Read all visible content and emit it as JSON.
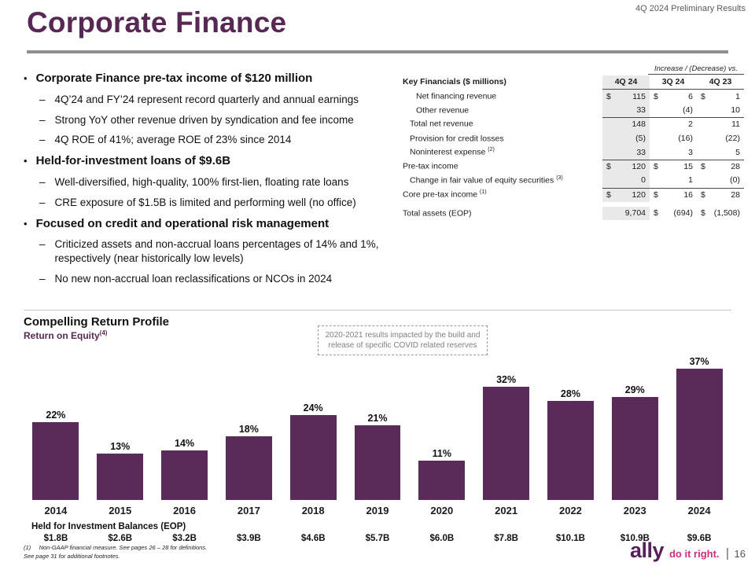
{
  "header": {
    "title": "Corporate Finance",
    "meta": "4Q 2024 Preliminary Results"
  },
  "bullets": [
    {
      "heading": "Corporate Finance pre-tax income of $120 million",
      "items": [
        "4Q’24 and FY’24 represent record quarterly and annual earnings",
        "Strong YoY other revenue driven by syndication and fee income",
        "4Q ROE of 41%; average ROE of 23% since 2014"
      ]
    },
    {
      "heading": "Held-for-investment loans of $9.6B",
      "items": [
        "Well-diversified, high-quality, 100% first-lien, floating rate loans",
        "CRE exposure of $1.5B is limited and performing well (no office)"
      ]
    },
    {
      "heading": "Focused on credit and operational risk management",
      "items": [
        "Criticized assets and non-accrual loans percentages of 14% and 1%, respectively (near historically low levels)",
        "No new non-accrual loan reclassifications or NCOs in 2024"
      ]
    }
  ],
  "table": {
    "vs_label": "Increase / (Decrease) vs.",
    "title": "Key Financials ($ millions)",
    "columns": [
      "4Q 24",
      "3Q 24",
      "4Q 23"
    ],
    "rows": [
      {
        "label": "Net financing revenue",
        "cells": [
          {
            "d": "$",
            "v": "115"
          },
          {
            "d": "$",
            "v": "6"
          },
          {
            "d": "$",
            "v": "1"
          }
        ]
      },
      {
        "label": "Other revenue",
        "cells": [
          {
            "v": "33"
          },
          {
            "v": "(4)"
          },
          {
            "v": "10"
          }
        ]
      },
      {
        "label": "Total net revenue",
        "cells": [
          {
            "v": "148"
          },
          {
            "v": "2"
          },
          {
            "v": "11"
          }
        ]
      },
      {
        "label": "Provision for credit losses",
        "cells": [
          {
            "v": "(5)"
          },
          {
            "v": "(16)"
          },
          {
            "v": "(22)"
          }
        ]
      },
      {
        "label": "Noninterest expense",
        "sup": "(2)",
        "cells": [
          {
            "v": "33"
          },
          {
            "v": "3"
          },
          {
            "v": "5"
          }
        ]
      },
      {
        "label": "Pre-tax income",
        "cells": [
          {
            "d": "$",
            "v": "120"
          },
          {
            "d": "$",
            "v": "15"
          },
          {
            "d": "$",
            "v": "28"
          }
        ]
      },
      {
        "label": "Change in fair value of equity securities",
        "sup": "(3)",
        "cells": [
          {
            "v": "0"
          },
          {
            "v": "1"
          },
          {
            "v": "(0)"
          }
        ]
      },
      {
        "label": "Core pre-tax income",
        "sup": "(1)",
        "cells": [
          {
            "d": "$",
            "v": "120"
          },
          {
            "d": "$",
            "v": "16"
          },
          {
            "d": "$",
            "v": "28"
          }
        ]
      },
      {
        "label": "Total assets (EOP)",
        "cells": [
          {
            "v": "9,704"
          },
          {
            "d": "$",
            "v": "(694)"
          },
          {
            "d": "$",
            "v": "(1,508)"
          }
        ]
      }
    ]
  },
  "chart_data": {
    "type": "bar",
    "title": "Compelling Return Profile",
    "subtitle": "Return on Equity",
    "subtitle_footnote": "(4)",
    "categories": [
      "2014",
      "2015",
      "2016",
      "2017",
      "2018",
      "2019",
      "2020",
      "2021",
      "2022",
      "2023",
      "2024"
    ],
    "values": [
      22,
      13,
      14,
      18,
      24,
      21,
      11,
      32,
      28,
      29,
      37
    ],
    "value_labels": [
      "22%",
      "13%",
      "14%",
      "18%",
      "24%",
      "21%",
      "11%",
      "32%",
      "28%",
      "29%",
      "37%"
    ],
    "ylim": [
      0,
      40
    ],
    "bar_color": "#5a2a59",
    "grid": false,
    "annotation": "2020-2021 results impacted by the build and release of specific COVID related reserves",
    "balances_label": "Held for Investment Balances (EOP)",
    "balances": [
      "$1.8B",
      "$2.6B",
      "$3.2B",
      "$3.9B",
      "$4.6B",
      "$5.7B",
      "$6.0B",
      "$7.8B",
      "$10.1B",
      "$10.9B",
      "$9.6B"
    ]
  },
  "footer": {
    "note1": "(1)     Non-GAAP financial measure. See pages 26 – 28 for definitions.",
    "note2": "See page 31 for additional footnotes.",
    "logo": "ally",
    "tagline": "do it right.",
    "page": "16"
  }
}
